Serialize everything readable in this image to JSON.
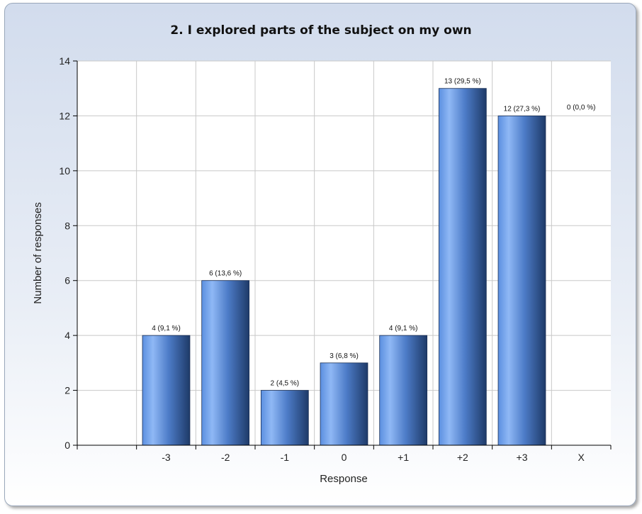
{
  "chart_data": {
    "type": "bar",
    "title": "2. I explored parts of the subject on my own",
    "xlabel": "Response",
    "ylabel": "Number of responses",
    "categories": [
      "-3",
      "-2",
      "-1",
      "0",
      "+1",
      "+2",
      "+3",
      "X"
    ],
    "values": [
      4,
      6,
      2,
      3,
      4,
      13,
      12,
      0
    ],
    "data_labels": [
      "4 (9,1 %)",
      "6 (13,6 %)",
      "2 (4,5 %)",
      "3 (6,8 %)",
      "4 (9,1 %)",
      "13 (29,5 %)",
      "12 (27,3 %)",
      "0 (0,0 %)"
    ],
    "yticks": [
      0,
      2,
      4,
      6,
      8,
      10,
      12,
      14
    ],
    "ylim": [
      0,
      14
    ],
    "grid": true,
    "bar_color": "#5b8fe0"
  }
}
